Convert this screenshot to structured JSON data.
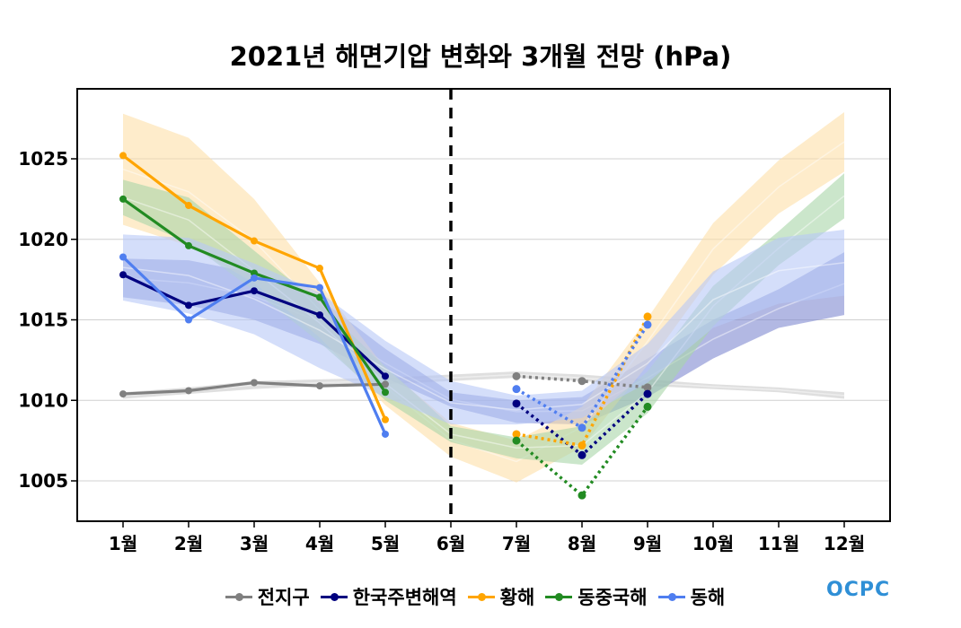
{
  "chart_data": {
    "type": "line",
    "title": "2021년 해면기압 변화와 3개월 전망 (hPa)",
    "xlabel": "",
    "ylabel": "",
    "categories": [
      "1월",
      "2월",
      "3월",
      "4월",
      "5월",
      "6월",
      "7월",
      "8월",
      "9월",
      "10월",
      "11월",
      "12월"
    ],
    "ylim": [
      1003.5,
      1030.3
    ],
    "yticks": [
      1005,
      1010,
      1015,
      1020,
      1025
    ],
    "grid": true,
    "divider": {
      "at_category": "6월",
      "style": "dashed",
      "label": ""
    },
    "legend_position": "bottom",
    "series": [
      {
        "name": "전지구",
        "color": "#808080",
        "band_color": "#d9d9d9",
        "observed": [
          1010.4,
          1010.6,
          1011.1,
          1010.9,
          1011.0,
          null,
          null,
          null,
          null,
          null,
          null,
          null
        ],
        "forecast": [
          null,
          null,
          null,
          null,
          null,
          null,
          1011.5,
          1011.2,
          1010.8,
          null,
          null,
          null
        ],
        "climatology_lower": [
          1010.1,
          1010.4,
          1010.7,
          1010.9,
          1011.0,
          1011.2,
          1011.4,
          1011.2,
          1010.9,
          1010.7,
          1010.5,
          1010.1
        ],
        "climatology_upper": [
          1010.5,
          1010.8,
          1011.2,
          1011.3,
          1011.4,
          1011.6,
          1011.8,
          1011.6,
          1011.3,
          1011.0,
          1010.8,
          1010.5
        ]
      },
      {
        "name": "한국주변해역",
        "color": "#00007f",
        "band_color": "#7f88d0",
        "observed": [
          1017.8,
          1015.9,
          1016.8,
          1015.3,
          1011.5,
          null,
          null,
          null,
          null,
          null,
          null,
          null
        ],
        "forecast": [
          null,
          null,
          null,
          null,
          null,
          null,
          1009.8,
          1006.6,
          1010.4,
          null,
          null,
          null
        ],
        "climatology_lower": [
          1016.4,
          1015.9,
          1015.0,
          1013.5,
          1011.4,
          1009.6,
          1008.6,
          1008.5,
          1010.2,
          1012.6,
          1014.5,
          1015.3
        ],
        "climatology_upper": [
          1018.8,
          1018.7,
          1017.9,
          1016.3,
          1013.2,
          1010.5,
          1010.0,
          1010.2,
          1012.6,
          1015.0,
          1016.9,
          1019.2
        ]
      },
      {
        "name": "황해",
        "color": "#ffa500",
        "band_color": "#fde0a8",
        "observed": [
          1025.2,
          1022.1,
          1019.9,
          1018.2,
          1008.8,
          null,
          null,
          null,
          null,
          null,
          null,
          null
        ],
        "forecast": [
          null,
          null,
          null,
          null,
          null,
          null,
          1007.9,
          1007.2,
          1015.2,
          null,
          null,
          null
        ],
        "climatology_lower": [
          1020.9,
          1019.6,
          1017.3,
          1013.9,
          1009.7,
          1006.5,
          1004.9,
          1007.1,
          1012.2,
          1017.8,
          1021.6,
          1024.2
        ],
        "climatology_upper": [
          1027.8,
          1026.3,
          1022.5,
          1017.3,
          1012.0,
          1008.6,
          1007.5,
          1009.6,
          1015.1,
          1021.0,
          1024.9,
          1027.9
        ]
      },
      {
        "name": "동중국해",
        "color": "#228b22",
        "band_color": "#a9d6a9",
        "observed": [
          1022.5,
          1019.6,
          1017.9,
          1016.4,
          1010.5,
          null,
          null,
          null,
          null,
          null,
          null,
          null
        ],
        "forecast": [
          null,
          null,
          null,
          null,
          null,
          null,
          1007.5,
          1004.1,
          1009.6,
          null,
          null,
          null
        ],
        "climatology_lower": [
          1021.5,
          1019.8,
          1016.8,
          1013.6,
          1010.0,
          1007.4,
          1006.4,
          1006.0,
          1009.2,
          1014.6,
          1018.4,
          1021.3
        ],
        "climatology_upper": [
          1023.7,
          1022.6,
          1019.3,
          1016.0,
          1012.1,
          1008.4,
          1007.7,
          1008.4,
          1011.8,
          1017.1,
          1020.5,
          1024.1
        ]
      },
      {
        "name": "동해",
        "color": "#4f7ef0",
        "band_color": "#b8c8f6",
        "observed": [
          1018.9,
          1015.0,
          1017.6,
          1017.0,
          1007.9,
          null,
          null,
          null,
          null,
          null,
          null,
          null
        ],
        "forecast": [
          null,
          null,
          null,
          null,
          null,
          null,
          1010.7,
          1008.3,
          1014.7,
          null,
          null,
          null
        ],
        "climatology_lower": [
          1016.2,
          1015.4,
          1014.1,
          1012.0,
          1010.2,
          1008.5,
          1008.5,
          1008.9,
          1011.1,
          1014.5,
          1016.0,
          1016.5
        ],
        "climatology_upper": [
          1020.3,
          1020.1,
          1018.5,
          1016.7,
          1013.7,
          1011.2,
          1010.3,
          1010.6,
          1013.5,
          1018.0,
          1020.1,
          1020.6
        ]
      }
    ]
  },
  "legend": [
    {
      "label": "전지구",
      "color": "#808080"
    },
    {
      "label": "한국주변해역",
      "color": "#00007f"
    },
    {
      "label": "황해",
      "color": "#ffa500"
    },
    {
      "label": "동중국해",
      "color": "#228b22"
    },
    {
      "label": "동해",
      "color": "#4f7ef0"
    }
  ],
  "logo": {
    "text": "OCPC"
  }
}
